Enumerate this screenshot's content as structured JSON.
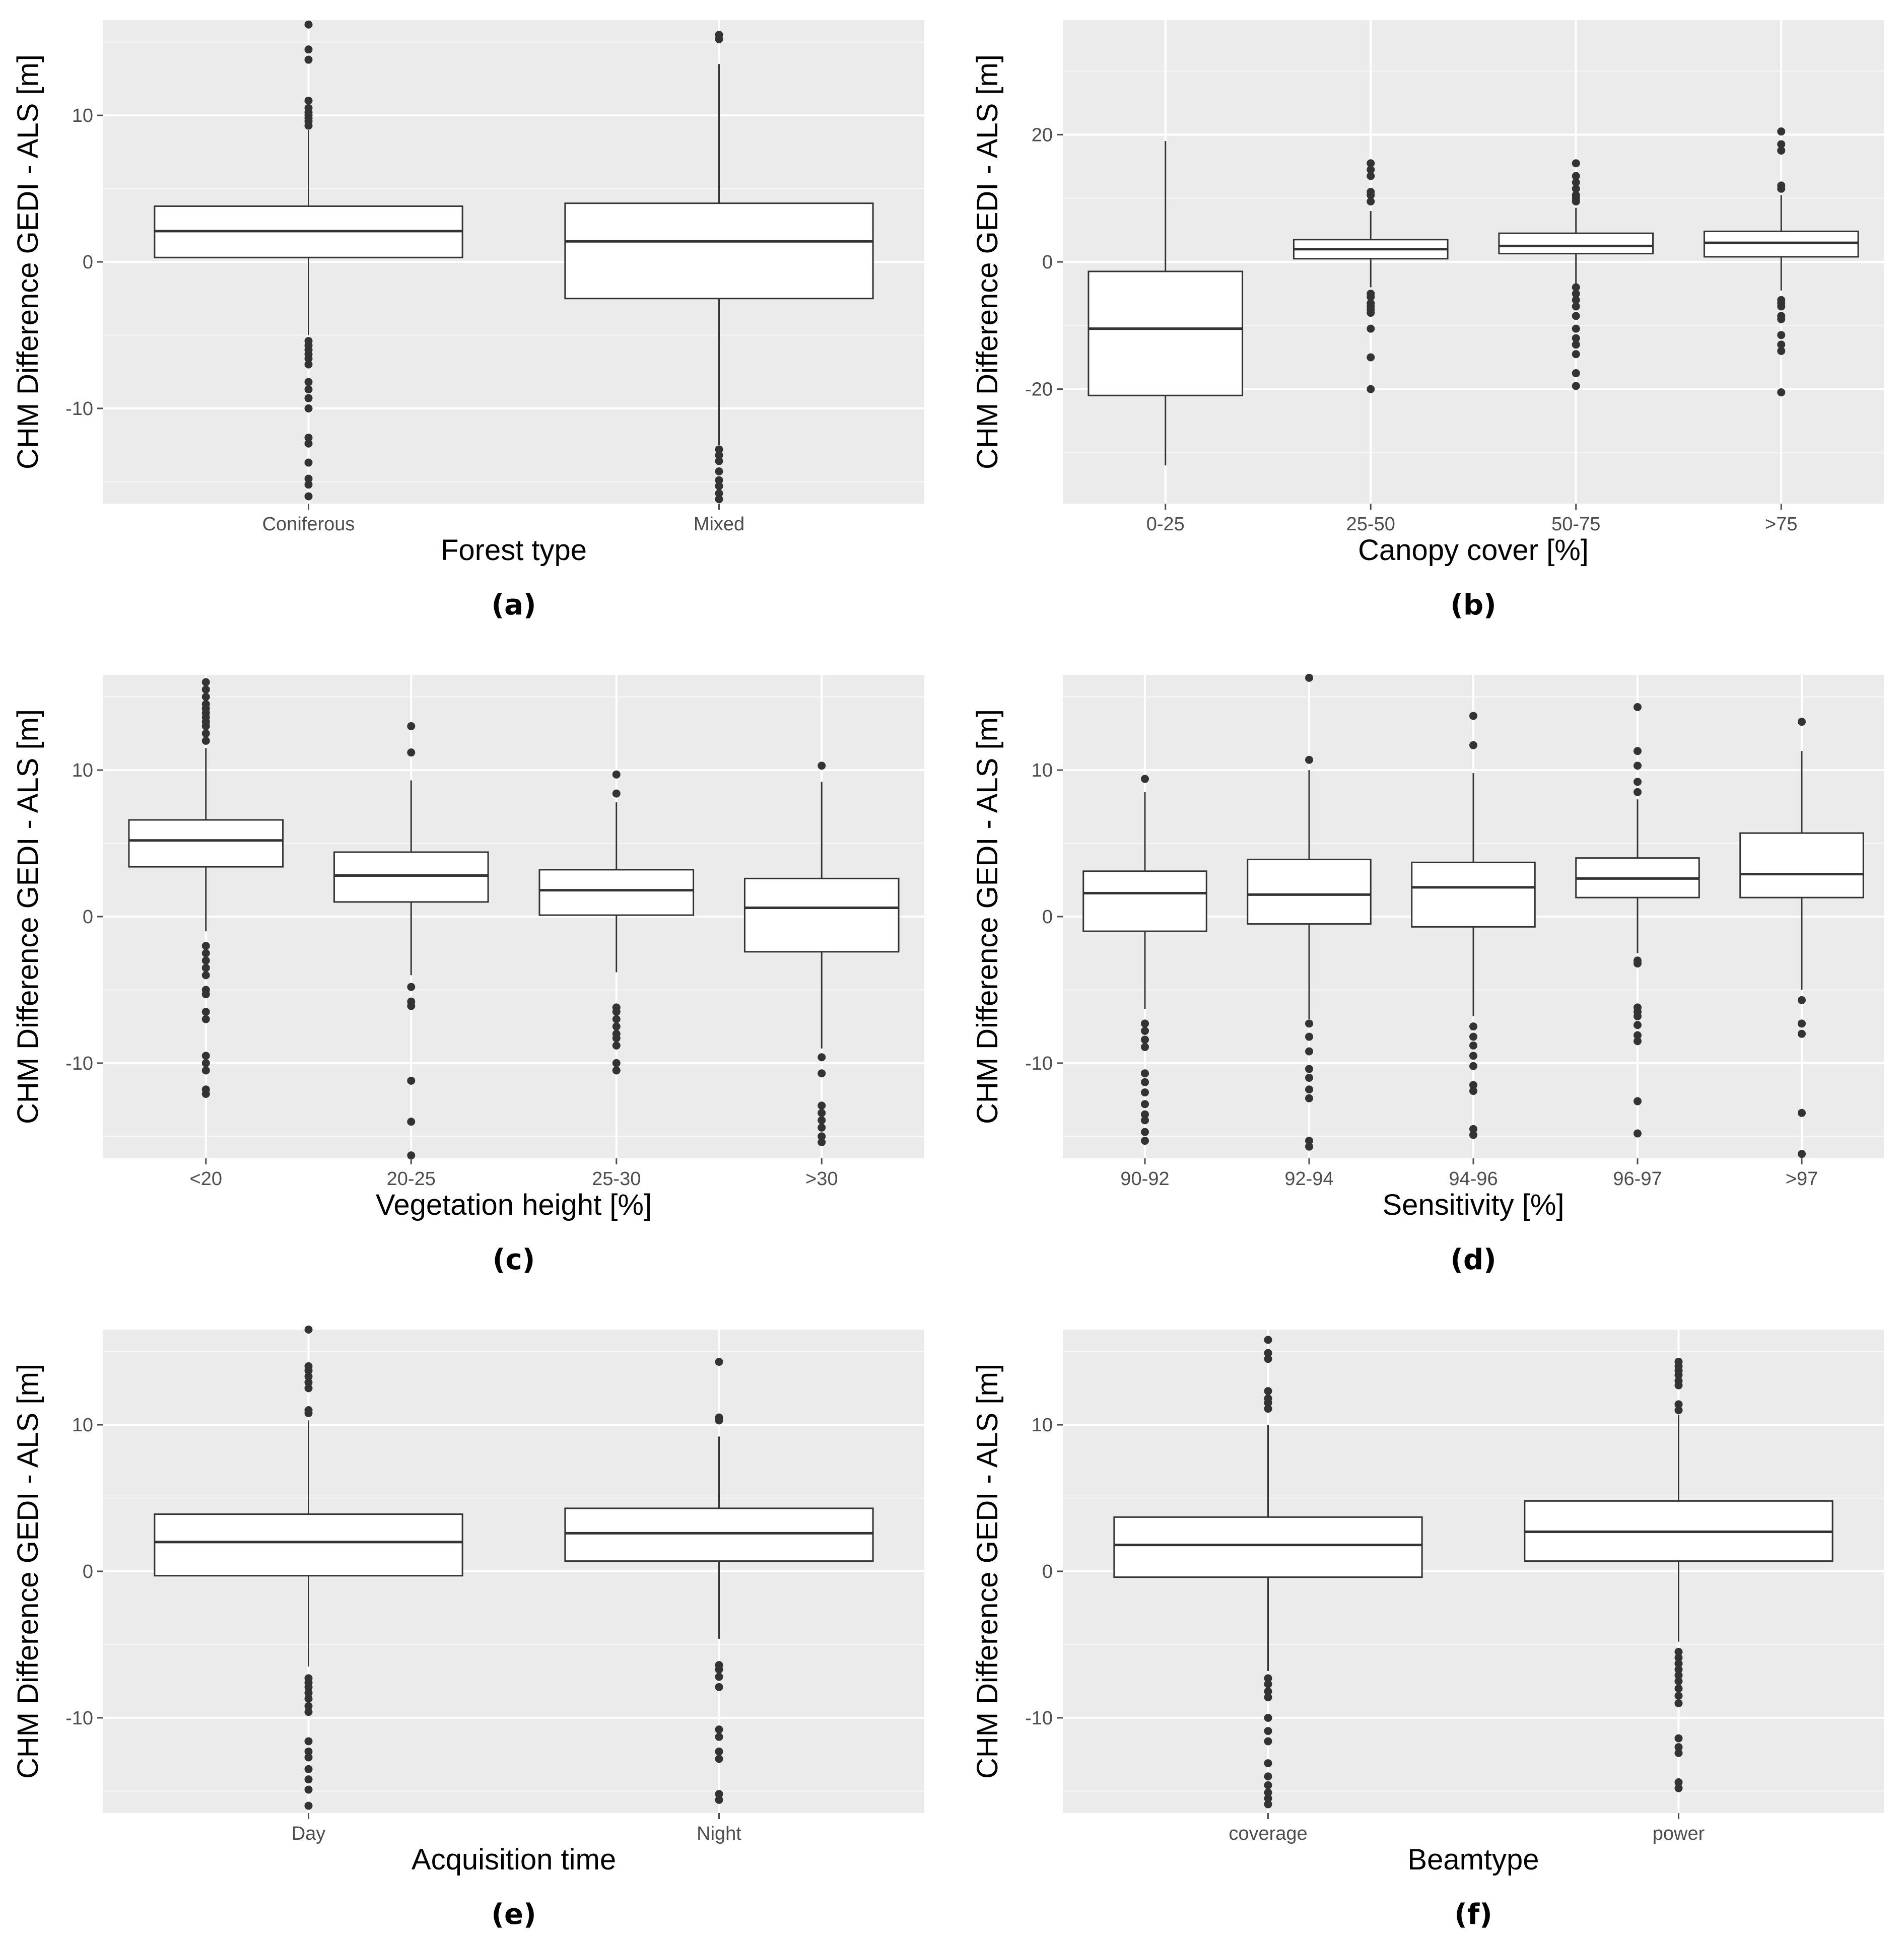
{
  "figure": {
    "y_axis_label": "CHM Difference GEDI - ALS [m]"
  },
  "chart_data": [
    {
      "panel": "a",
      "type": "boxplot",
      "caption": "(a)",
      "xlabel": "Forest type",
      "ylabel": "CHM Difference GEDI - ALS [m]",
      "ylim": [
        -16.5,
        16.5
      ],
      "yticks": [
        -10,
        0,
        10
      ],
      "categories": [
        "Coniferous",
        "Mixed"
      ],
      "boxes": [
        {
          "q1": 0.3,
          "median": 2.1,
          "q3": 3.8,
          "whisker_low": -5.0,
          "whisker_high": 9.0,
          "outliers": [
            9.3,
            9.6,
            9.8,
            10.0,
            10.2,
            10.5,
            11.0,
            13.8,
            14.5,
            16.2,
            -5.4,
            -5.7,
            -6.0,
            -6.3,
            -6.6,
            -7.0,
            -8.2,
            -8.7,
            -9.3,
            -10.0,
            -12.0,
            -12.4,
            -13.7,
            -14.8,
            -15.2,
            -16.0
          ]
        },
        {
          "q1": -2.5,
          "median": 1.4,
          "q3": 4.0,
          "whisker_low": -12.5,
          "whisker_high": 13.5,
          "outliers": [
            15.2,
            15.5,
            -12.8,
            -13.2,
            -13.6,
            -14.3,
            -14.9,
            -15.3,
            -15.8,
            -16.2
          ]
        }
      ]
    },
    {
      "panel": "b",
      "type": "boxplot",
      "caption": "(b)",
      "xlabel": "Canopy cover [%]",
      "ylabel": "CHM Difference GEDI - ALS [m]",
      "ylim": [
        -38,
        38
      ],
      "yticks": [
        -20,
        0,
        20
      ],
      "categories": [
        "0-25",
        "25-50",
        "50-75",
        ">75"
      ],
      "boxes": [
        {
          "q1": -21,
          "median": -10.5,
          "q3": -1.5,
          "whisker_low": -32,
          "whisker_high": 19,
          "outliers": []
        },
        {
          "q1": 0.5,
          "median": 2.0,
          "q3": 3.5,
          "whisker_low": -4.0,
          "whisker_high": 8.0,
          "outliers": [
            9.5,
            10.5,
            11.0,
            13.5,
            14.5,
            15.5,
            -5.0,
            -5.5,
            -6.5,
            -7.0,
            -7.5,
            -8.0,
            -10.5,
            -15.0,
            -20.0
          ]
        },
        {
          "q1": 1.3,
          "median": 2.5,
          "q3": 4.5,
          "whisker_low": -3.5,
          "whisker_high": 8.5,
          "outliers": [
            9.5,
            10.0,
            10.5,
            11.5,
            12.5,
            13.5,
            15.5,
            -4.0,
            -5.0,
            -6.0,
            -7.0,
            -8.5,
            -10.5,
            -12.0,
            -13.0,
            -14.5,
            -17.5,
            -19.5
          ]
        },
        {
          "q1": 0.8,
          "median": 3.0,
          "q3": 4.8,
          "whisker_low": -4.5,
          "whisker_high": 10.5,
          "outliers": [
            11.5,
            12.0,
            17.5,
            18.5,
            20.5,
            -6.0,
            -6.5,
            -7.0,
            -8.5,
            -9.0,
            -11.5,
            -13.0,
            -14.0,
            -20.5
          ]
        }
      ]
    },
    {
      "panel": "c",
      "type": "boxplot",
      "caption": "(c)",
      "xlabel": "Vegetation height [%]",
      "ylabel": "CHM Difference GEDI - ALS [m]",
      "ylim": [
        -16.5,
        16.5
      ],
      "yticks": [
        -10,
        0,
        10
      ],
      "categories": [
        "<20",
        "20-25",
        "25-30",
        ">30"
      ],
      "boxes": [
        {
          "q1": 3.4,
          "median": 5.2,
          "q3": 6.6,
          "whisker_low": -1.0,
          "whisker_high": 11.5,
          "outliers": [
            12.0,
            12.5,
            13.0,
            13.3,
            13.6,
            13.9,
            14.2,
            14.5,
            15.0,
            15.5,
            16.0,
            -2.0,
            -2.5,
            -3.0,
            -3.5,
            -4.0,
            -5.0,
            -5.3,
            -6.5,
            -7.0,
            -9.5,
            -10.0,
            -10.5,
            -11.8,
            -12.1
          ]
        },
        {
          "q1": 1.0,
          "median": 2.8,
          "q3": 4.4,
          "whisker_low": -4.0,
          "whisker_high": 9.3,
          "outliers": [
            11.2,
            13.0,
            -4.8,
            -5.8,
            -6.1,
            -11.2,
            -14.0,
            -16.3
          ]
        },
        {
          "q1": 0.1,
          "median": 1.8,
          "q3": 3.2,
          "whisker_low": -3.8,
          "whisker_high": 7.8,
          "outliers": [
            8.4,
            9.7,
            -6.2,
            -6.5,
            -7.0,
            -7.5,
            -8.0,
            -8.3,
            -8.8,
            -10.0,
            -10.5
          ]
        },
        {
          "q1": -2.4,
          "median": 0.6,
          "q3": 2.6,
          "whisker_low": -9.0,
          "whisker_high": 9.2,
          "outliers": [
            10.3,
            -9.6,
            -10.7,
            -12.9,
            -13.4,
            -13.9,
            -14.4,
            -15.0,
            -15.4
          ]
        }
      ]
    },
    {
      "panel": "d",
      "type": "boxplot",
      "caption": "(d)",
      "xlabel": "Sensitivity [%]",
      "ylabel": "CHM Difference GEDI - ALS [m]",
      "ylim": [
        -16.5,
        16.5
      ],
      "yticks": [
        -10,
        0,
        10
      ],
      "categories": [
        "90-92",
        "92-94",
        "94-96",
        "96-97",
        ">97"
      ],
      "boxes": [
        {
          "q1": -1.0,
          "median": 1.6,
          "q3": 3.1,
          "whisker_low": -6.3,
          "whisker_high": 8.5,
          "outliers": [
            9.4,
            -7.3,
            -7.8,
            -8.4,
            -8.9,
            -10.7,
            -11.3,
            -12.0,
            -12.8,
            -13.5,
            -13.9,
            -14.7,
            -15.3
          ]
        },
        {
          "q1": -0.5,
          "median": 1.5,
          "q3": 3.9,
          "whisker_low": -7.0,
          "whisker_high": 10.0,
          "outliers": [
            10.7,
            16.3,
            -7.3,
            -8.2,
            -9.2,
            -10.4,
            -11.0,
            -11.8,
            -12.4,
            -15.3,
            -15.7
          ]
        },
        {
          "q1": -0.7,
          "median": 2.0,
          "q3": 3.7,
          "whisker_low": -6.8,
          "whisker_high": 9.8,
          "outliers": [
            11.7,
            13.7,
            -7.5,
            -8.2,
            -8.8,
            -9.5,
            -10.2,
            -11.5,
            -11.9,
            -14.5,
            -14.9
          ]
        },
        {
          "q1": 1.3,
          "median": 2.6,
          "q3": 4.0,
          "whisker_low": -2.5,
          "whisker_high": 8.0,
          "outliers": [
            8.5,
            9.2,
            10.3,
            11.3,
            14.3,
            -3.0,
            -3.2,
            -6.2,
            -6.5,
            -6.8,
            -7.4,
            -8.1,
            -8.5,
            -12.6,
            -14.8
          ]
        },
        {
          "q1": 1.3,
          "median": 2.9,
          "q3": 5.7,
          "whisker_low": -5.0,
          "whisker_high": 11.3,
          "outliers": [
            13.3,
            -5.7,
            -7.3,
            -8.0,
            -13.4,
            -16.2
          ]
        }
      ]
    },
    {
      "panel": "e",
      "type": "boxplot",
      "caption": "(e)",
      "xlabel": "Acquisition time",
      "ylabel": "CHM Difference GEDI - ALS [m]",
      "ylim": [
        -16.5,
        16.5
      ],
      "yticks": [
        -10,
        0,
        10
      ],
      "categories": [
        "Day",
        "Night"
      ],
      "boxes": [
        {
          "q1": -0.3,
          "median": 2.0,
          "q3": 3.9,
          "whisker_low": -6.5,
          "whisker_high": 10.3,
          "outliers": [
            10.8,
            11.0,
            12.5,
            12.9,
            13.3,
            13.7,
            14.0,
            16.5,
            -7.3,
            -7.6,
            -7.9,
            -8.3,
            -8.7,
            -9.2,
            -9.6,
            -11.6,
            -12.3,
            -12.7,
            -13.5,
            -14.2,
            -14.9,
            -16.0
          ]
        },
        {
          "q1": 0.7,
          "median": 2.6,
          "q3": 4.3,
          "whisker_low": -4.6,
          "whisker_high": 9.2,
          "outliers": [
            10.3,
            10.5,
            14.3,
            -6.4,
            -6.7,
            -7.2,
            -7.9,
            -10.8,
            -11.3,
            -12.3,
            -12.8,
            -15.2,
            -15.6
          ]
        }
      ]
    },
    {
      "panel": "f",
      "type": "boxplot",
      "caption": "(f)",
      "xlabel": "Beamtype",
      "ylabel": "CHM Difference GEDI - ALS [m]",
      "ylim": [
        -16.5,
        16.5
      ],
      "yticks": [
        -10,
        0,
        10
      ],
      "categories": [
        "coverage",
        "power"
      ],
      "boxes": [
        {
          "q1": -0.4,
          "median": 1.8,
          "q3": 3.7,
          "whisker_low": -6.8,
          "whisker_high": 10.0,
          "outliers": [
            11.1,
            11.5,
            11.8,
            12.3,
            14.5,
            14.9,
            15.8,
            -7.3,
            -7.7,
            -8.2,
            -8.6,
            -10.0,
            -10.9,
            -11.6,
            -13.1,
            -14.0,
            -14.6,
            -15.1,
            -15.5,
            -15.9
          ]
        },
        {
          "q1": 0.7,
          "median": 2.7,
          "q3": 4.8,
          "whisker_low": -4.8,
          "whisker_high": 10.7,
          "outliers": [
            11.0,
            11.4,
            12.7,
            13.0,
            13.4,
            13.7,
            14.0,
            14.3,
            -5.5,
            -5.9,
            -6.3,
            -6.7,
            -7.1,
            -7.5,
            -8.0,
            -8.5,
            -9.0,
            -11.4,
            -12.0,
            -12.4,
            -14.4,
            -14.8
          ]
        }
      ]
    }
  ]
}
